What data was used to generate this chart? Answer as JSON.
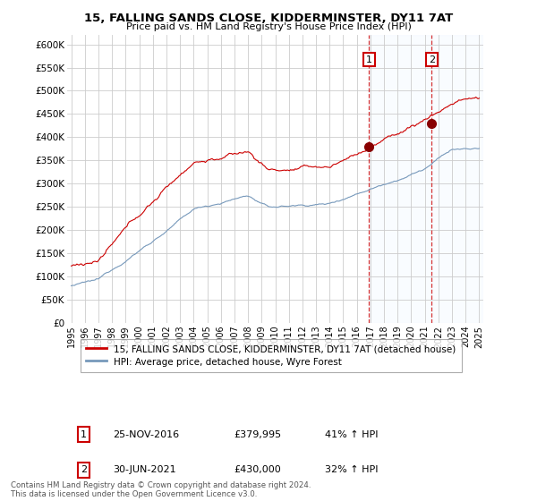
{
  "title1": "15, FALLING SANDS CLOSE, KIDDERMINSTER, DY11 7AT",
  "title2": "Price paid vs. HM Land Registry's House Price Index (HPI)",
  "ylabel_ticks": [
    "£0",
    "£50K",
    "£100K",
    "£150K",
    "£200K",
    "£250K",
    "£300K",
    "£350K",
    "£400K",
    "£450K",
    "£500K",
    "£550K",
    "£600K"
  ],
  "ytick_values": [
    0,
    50000,
    100000,
    150000,
    200000,
    250000,
    300000,
    350000,
    400000,
    450000,
    500000,
    550000,
    600000
  ],
  "ylim": [
    0,
    620000
  ],
  "xlim_start": 1994.7,
  "xlim_end": 2025.3,
  "red_line_color": "#cc0000",
  "blue_line_color": "#7799bb",
  "marker1_x": 2016.9,
  "marker1_y": 379995,
  "marker2_x": 2021.5,
  "marker2_y": 430000,
  "marker1_label": "1",
  "marker2_label": "2",
  "marker1_date": "25-NOV-2016",
  "marker1_price": "£379,995",
  "marker1_hpi": "41% ↑ HPI",
  "marker2_date": "30-JUN-2021",
  "marker2_price": "£430,000",
  "marker2_hpi": "32% ↑ HPI",
  "legend_line1": "15, FALLING SANDS CLOSE, KIDDERMINSTER, DY11 7AT (detached house)",
  "legend_line2": "HPI: Average price, detached house, Wyre Forest",
  "footer": "Contains HM Land Registry data © Crown copyright and database right 2024.\nThis data is licensed under the Open Government Licence v3.0.",
  "background_color": "#ffffff",
  "grid_color": "#cccccc",
  "shade_color": "#ddeeff",
  "dashed_line_color": "#cc0000"
}
